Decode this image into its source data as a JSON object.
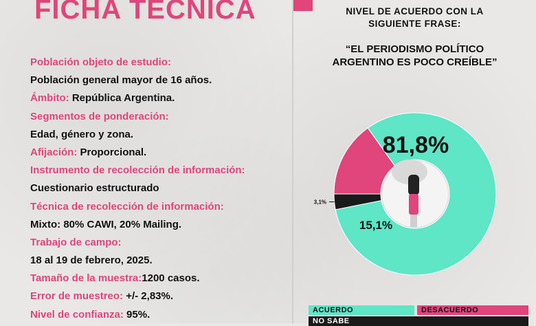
{
  "ficha": {
    "title": "FICHA TÉCNICA",
    "rows": [
      {
        "label": "Población objeto de estudio:",
        "value": ""
      },
      {
        "label": "",
        "value": "Población general mayor de 16 años."
      },
      {
        "label": "Ámbito:",
        "value": " República Argentina."
      },
      {
        "label": "Segmentos de ponderación:",
        "value": ""
      },
      {
        "label": "",
        "value": "Edad, género y zona."
      },
      {
        "label": "Afijación:",
        "value": " Proporcional."
      },
      {
        "label": "Instrumento de recolección de información:",
        "value": ""
      },
      {
        "label": "",
        "value": "Cuestionario estructurado"
      },
      {
        "label": "Técnica de recolección de información:",
        "value": ""
      },
      {
        "label": "",
        "value": "Mixto: 80% CAWI, 20% Mailing."
      },
      {
        "label": "Trabajo de campo:",
        "value": ""
      },
      {
        "label": "",
        "value": "18 al 19 de febrero, 2025."
      },
      {
        "label": "Tamaño de la muestra:",
        "value": "1200 casos."
      },
      {
        "label": "Error de muestreo:",
        "value": " +/- 2,83%."
      },
      {
        "label": "Nivel de confianza:",
        "value": " 95%."
      }
    ]
  },
  "chart_data": {
    "type": "pie",
    "title_line1": "NIVEL DE ACUERDO CON LA",
    "title_line2": "SIGUIENTE FRASE:",
    "quote_line1": "“EL PERIODISMO POLÍTICO",
    "quote_line2": "ARGENTINO ES POCO CREÍBLE”",
    "slices": [
      {
        "label": "ACUERDO",
        "value": 81.8,
        "display": "81,8%",
        "color": "#5ee6c6"
      },
      {
        "label": "DESACUERDO",
        "value": 15.1,
        "display": "15,1%",
        "color": "#e0457b"
      },
      {
        "label": "NO SABE",
        "value": 3.1,
        "display": "3,1%",
        "color": "#1a1a1a"
      }
    ]
  },
  "colors": {
    "accent": "#e0457b",
    "teal": "#5ee6c6",
    "dark": "#1a1a1a"
  },
  "icons": {
    "center": "microphone-icon"
  }
}
